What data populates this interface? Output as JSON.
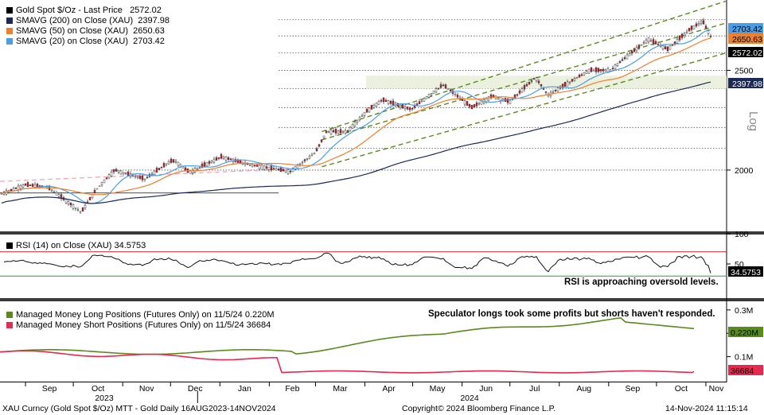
{
  "panel1_legend": [
    {
      "label": "Gold Spot $/Oz - Last Price",
      "value": "2572.02",
      "color": "#000000"
    },
    {
      "label": "SMAVG (200)  on Close (XAU)",
      "value": "2397.98",
      "color": "#1b2a57"
    },
    {
      "label": "SMAVG (50)  on Close (XAU)",
      "value": "2650.63",
      "color": "#f07f2c"
    },
    {
      "label": "SMAVG (20)  on Close (XAU)",
      "value": "2703.42",
      "color": "#4a9ee8"
    }
  ],
  "panel2_legend": {
    "label": "RSI (14)  on Close (XAU)",
    "value": "34.5753",
    "color": "#000000"
  },
  "panel3_legend": [
    {
      "label": "Managed Money Long Positions (Futures Only) on 11/5/24",
      "value": "0.220M",
      "color": "#5a8a1e"
    },
    {
      "label": "Managed Money Short Positions (Futures Only) on 11/5/24",
      "value": "36684",
      "color": "#e8294f"
    }
  ],
  "notes": {
    "rsi": "RSI is approaching oversold levels.",
    "positions": "Speculator longs took some profits but shorts haven't responded."
  },
  "scale_label": "Log",
  "footer": {
    "left": "XAU Curncy (Gold Spot  $/Oz) MTT - Gold  Daily 16AUG2023-14NOV2024",
    "center": "Copyright© 2024 Bloomberg Finance L.P.",
    "right": "14-Nov-2024 11:15:14"
  },
  "chart_data": [
    {
      "type": "line",
      "title": "Gold Spot $/Oz - Last Price",
      "x": [
        "2023-08-16",
        "2023-09-01",
        "2023-09-15",
        "2023-10-02",
        "2023-10-06",
        "2023-10-16",
        "2023-10-27",
        "2023-11-15",
        "2023-12-01",
        "2023-12-04",
        "2023-12-13",
        "2024-01-02",
        "2024-01-19",
        "2024-02-14",
        "2024-03-01",
        "2024-03-08",
        "2024-03-21",
        "2024-04-02",
        "2024-04-12",
        "2024-04-30",
        "2024-05-20",
        "2024-06-07",
        "2024-06-20",
        "2024-07-01",
        "2024-07-17",
        "2024-07-25",
        "2024-08-20",
        "2024-09-02",
        "2024-09-26",
        "2024-10-08",
        "2024-10-22",
        "2024-10-30",
        "2024-11-06",
        "2024-11-14"
      ],
      "y": [
        1895,
        1935,
        1925,
        1840,
        1820,
        1920,
        2000,
        1960,
        2040,
        2040,
        1990,
        2060,
        2025,
        1993,
        2080,
        2180,
        2180,
        2280,
        2340,
        2290,
        2420,
        2300,
        2360,
        2330,
        2460,
        2365,
        2500,
        2500,
        2680,
        2620,
        2740,
        2790,
        2660,
        2572
      ],
      "ylim": [
        1750,
        2900
      ],
      "y_ticks": [
        2000,
        2500
      ],
      "log_scale": true,
      "series_extra": [
        {
          "name": "SMAVG (20)  on Close (XAU)",
          "last": 2703.42
        },
        {
          "name": "SMAVG (50)  on Close (XAU)",
          "last": 2650.63
        },
        {
          "name": "SMAVG (200)  on Close (XAU)",
          "last": 2397.98
        }
      ],
      "annotations": [
        "2703.42",
        "2650.63",
        "2572.02",
        "2397.98"
      ]
    },
    {
      "type": "line",
      "title": "RSI (14)  on Close (XAU)",
      "y_ticks": [
        100,
        50
      ],
      "ylim": [
        0,
        100
      ],
      "reference_lines": [
        70,
        30
      ],
      "last": 34.5753
    },
    {
      "type": "line",
      "title": "Managed Money Positions (Futures Only)",
      "series": [
        {
          "name": "Managed Money Long Positions (Futures Only)",
          "last": "0.220M"
        },
        {
          "name": "Managed Money Short Positions (Futures Only)",
          "last": "36684"
        }
      ],
      "y_ticks": [
        "0.3M",
        "0.2M",
        "0.1M"
      ],
      "x_ticks": [
        "Sep",
        "Oct",
        "Nov",
        "Dec",
        "Jan",
        "Feb",
        "Mar",
        "Apr",
        "May",
        "Jun",
        "Jul",
        "Aug",
        "Sep",
        "Oct",
        "Nov"
      ],
      "x_years": [
        "2023",
        "2024"
      ]
    }
  ]
}
